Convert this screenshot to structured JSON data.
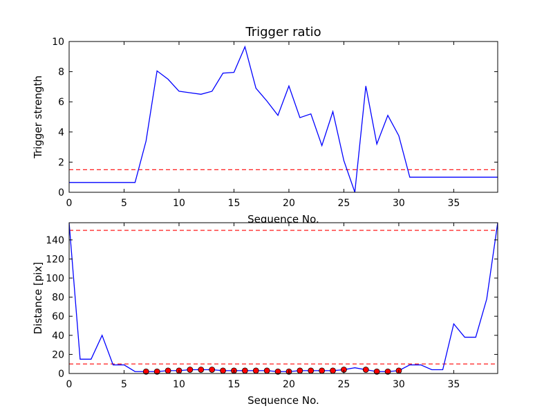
{
  "figure": {
    "background": "#ffffff"
  },
  "chart_data": [
    {
      "type": "line",
      "title": "Trigger ratio",
      "xlabel": "Sequence No.",
      "ylabel": "Trigger strength",
      "xlim": [
        0,
        39
      ],
      "ylim": [
        0,
        10
      ],
      "xticks": [
        0,
        5,
        10,
        15,
        20,
        25,
        30,
        35
      ],
      "yticks": [
        0,
        2,
        4,
        6,
        8,
        10
      ],
      "grid": false,
      "series": [
        {
          "type": "line",
          "color": "#0000ff",
          "x": [
            0,
            1,
            2,
            3,
            4,
            5,
            6,
            7,
            8,
            9,
            10,
            11,
            12,
            13,
            14,
            15,
            16,
            17,
            18,
            19,
            20,
            21,
            22,
            23,
            24,
            25,
            26,
            27,
            28,
            29,
            30,
            31,
            32,
            33,
            34,
            35,
            36,
            37,
            38,
            39
          ],
          "y": [
            0.65,
            0.65,
            0.65,
            0.65,
            0.65,
            0.65,
            0.65,
            3.4,
            8.05,
            7.5,
            6.7,
            6.6,
            6.5,
            6.7,
            7.9,
            7.95,
            9.65,
            6.9,
            6.05,
            5.1,
            7.05,
            4.95,
            5.2,
            3.1,
            5.35,
            2.1,
            0.0,
            7.05,
            3.2,
            5.1,
            3.75,
            1.0,
            1.0,
            1.0,
            1.0,
            1.0,
            1.0,
            1.0,
            1.0,
            1.0
          ]
        }
      ],
      "hlines": [
        {
          "y": 1.5,
          "color": "#ff0000",
          "style": "dashed"
        }
      ]
    },
    {
      "type": "line",
      "title": "",
      "xlabel": "Sequence No.",
      "ylabel": "Distance [pix]",
      "xlim": [
        0,
        39
      ],
      "ylim": [
        0,
        158
      ],
      "xticks": [
        0,
        5,
        10,
        15,
        20,
        25,
        30,
        35
      ],
      "yticks": [
        0,
        20,
        40,
        60,
        80,
        100,
        120,
        140
      ],
      "grid": false,
      "series": [
        {
          "type": "line",
          "color": "#0000ff",
          "x": [
            0,
            1,
            2,
            3,
            4,
            5,
            6,
            7,
            8,
            9,
            10,
            11,
            12,
            13,
            14,
            15,
            16,
            17,
            18,
            19,
            20,
            21,
            22,
            23,
            24,
            25,
            26,
            27,
            28,
            29,
            30,
            31,
            32,
            33,
            34,
            35,
            36,
            37,
            38,
            39
          ],
          "y": [
            158,
            15,
            15,
            40,
            9,
            9,
            2,
            2,
            2,
            3,
            3,
            4,
            4,
            4,
            3,
            3,
            3,
            3,
            3,
            2,
            2,
            3,
            3,
            3,
            3,
            4,
            6,
            4,
            2,
            2,
            3,
            9,
            9,
            4,
            4,
            52,
            38,
            38,
            78,
            158
          ]
        },
        {
          "type": "scatter",
          "color": "#ff0000",
          "edge_color": "#000000",
          "x": [
            7,
            8,
            9,
            10,
            11,
            12,
            13,
            14,
            15,
            16,
            17,
            18,
            19,
            20,
            21,
            22,
            23,
            24,
            25,
            27,
            28,
            29,
            30
          ],
          "y": [
            2,
            2,
            3,
            3,
            4,
            4,
            4,
            3,
            3,
            3,
            3,
            3,
            2,
            2,
            3,
            3,
            3,
            3,
            4,
            4,
            2,
            2,
            3
          ]
        }
      ],
      "hlines": [
        {
          "y": 150,
          "color": "#ff0000",
          "style": "dashed"
        },
        {
          "y": 10,
          "color": "#ff0000",
          "style": "dashed"
        }
      ]
    }
  ]
}
